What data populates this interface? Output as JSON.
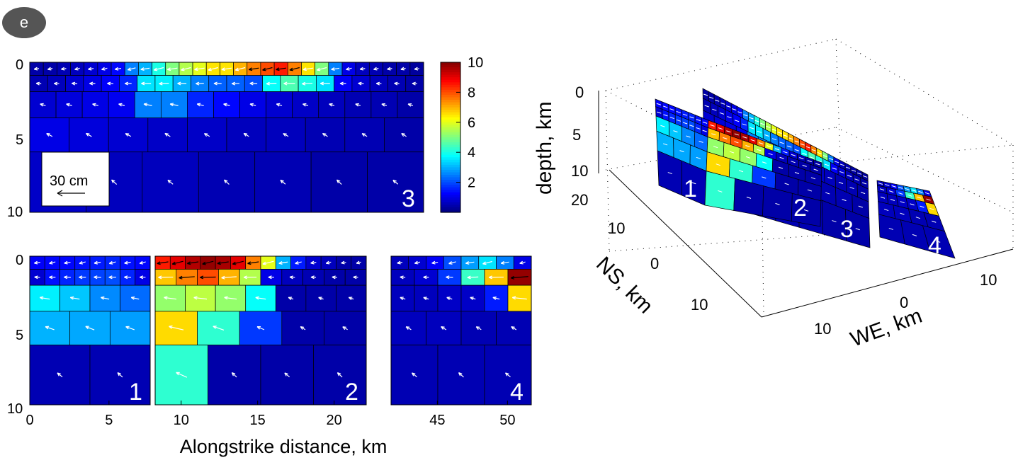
{
  "panel_label": "e",
  "chart_data": {
    "type": "heatmap",
    "colorbar": {
      "min": 0,
      "max": 10,
      "ticks": [
        "2",
        "4",
        "6",
        "8",
        "10"
      ]
    },
    "scale_arrow": {
      "label": "30 cm"
    },
    "xlabel": "Alongstrike distance, km",
    "panels": [
      {
        "id": "3",
        "label": "3",
        "yticks": [
          "0",
          "5",
          "10"
        ],
        "rows": [
          {
            "top": 0,
            "bottom": 0.85,
            "values": [
              0.4,
              0.4,
              0.5,
              0.6,
              0.8,
              1.0,
              1.3,
              2.5,
              3.0,
              4.0,
              5.0,
              5.5,
              6.0,
              6.5,
              6.5,
              7.0,
              7.5,
              8.0,
              8.5,
              7.5,
              6.5,
              5.0,
              2.5,
              1.0,
              0.6,
              0.5,
              0.4,
              0.4,
              0.3
            ]
          },
          {
            "top": 0.85,
            "bottom": 1.9,
            "values": [
              0.5,
              0.6,
              0.8,
              1.0,
              1.2,
              1.6,
              3.5,
              3.6,
              3.0,
              2.5,
              2.2,
              2.2,
              2.0,
              3.8,
              4.5,
              4.0,
              3.5,
              1.2,
              0.8,
              0.6,
              0.5,
              0.4
            ]
          },
          {
            "top": 1.9,
            "bottom": 3.6,
            "values": [
              0.8,
              0.9,
              1.0,
              1.1,
              2.5,
              2.5,
              1.6,
              1.3,
              1.0,
              0.8,
              0.7,
              0.6,
              0.5,
              0.5,
              0.4
            ]
          },
          {
            "top": 3.6,
            "bottom": 5.8,
            "values": [
              1.0,
              0.9,
              0.8,
              0.7,
              0.7,
              0.6,
              0.6,
              0.5,
              0.5,
              0.4
            ]
          },
          {
            "top": 5.8,
            "bottom": 9.7,
            "values": [
              0.7,
              0.6,
              0.6,
              0.5,
              0.5,
              0.4,
              0.4
            ]
          }
        ]
      },
      {
        "id": "1",
        "label": "1",
        "xticks": [
          "0",
          "5"
        ],
        "xlim": [
          0,
          7.6
        ],
        "yticks": [
          "0",
          "5",
          "10"
        ],
        "rows": [
          {
            "top": 0,
            "bottom": 0.85,
            "values": [
              1.2,
              1.3,
              1.3,
              1.4,
              1.5,
              1.6,
              1.4,
              1.3
            ]
          },
          {
            "top": 0.85,
            "bottom": 1.9,
            "values": [
              0.8,
              1.4,
              1.6,
              1.8,
              1.9,
              2.0,
              1.6,
              1.0
            ]
          },
          {
            "top": 1.9,
            "bottom": 3.6,
            "values": [
              3.6,
              3.2,
              2.6,
              2.3
            ]
          },
          {
            "top": 3.6,
            "bottom": 5.8,
            "values": [
              3.0,
              2.9,
              2.8
            ]
          },
          {
            "top": 5.8,
            "bottom": 9.7,
            "values": [
              0.5,
              0.5
            ]
          }
        ]
      },
      {
        "id": "2",
        "label": "2",
        "xticks": [
          "10",
          "15",
          "20"
        ],
        "xlim": [
          8.3,
          22.1
        ],
        "rows": [
          {
            "top": 0,
            "bottom": 0.85,
            "values": [
              8.5,
              9.0,
              9.5,
              9.8,
              9.6,
              9.0,
              7.5,
              6.0,
              3.0,
              1.5,
              0.8,
              0.6,
              0.4,
              0.4
            ]
          },
          {
            "top": 0.85,
            "bottom": 1.9,
            "values": [
              6.8,
              7.5,
              8.0,
              7.0,
              5.5,
              1.0,
              0.6,
              0.5,
              0.4,
              0.4
            ]
          },
          {
            "top": 1.9,
            "bottom": 3.6,
            "values": [
              5.2,
              5.6,
              5.2,
              3.8,
              0.4,
              0.4,
              0.4
            ]
          },
          {
            "top": 3.6,
            "bottom": 5.8,
            "values": [
              6.6,
              4.2,
              1.8,
              0.4,
              0.4
            ]
          },
          {
            "top": 5.8,
            "bottom": 9.7,
            "values": [
              4.2,
              0.4,
              0.4,
              0.4
            ]
          }
        ]
      },
      {
        "id": "4",
        "label": "4",
        "xticks": [
          "45",
          "50"
        ],
        "xlim": [
          41.7,
          51.7
        ],
        "rows": [
          {
            "top": 0,
            "bottom": 0.85,
            "values": [
              0.6,
              0.8,
              1.2,
              2.0,
              2.8,
              3.5,
              2.5,
              1.0
            ]
          },
          {
            "top": 0.85,
            "bottom": 1.9,
            "values": [
              0.6,
              0.8,
              1.8,
              4.3,
              6.8,
              9.8
            ]
          },
          {
            "top": 1.9,
            "bottom": 3.6,
            "values": [
              0.6,
              0.6,
              0.7,
              0.7,
              1.5,
              6.6
            ]
          },
          {
            "top": 3.6,
            "bottom": 5.8,
            "values": [
              0.6,
              0.6,
              0.5,
              0.5
            ]
          },
          {
            "top": 5.8,
            "bottom": 9.7,
            "values": [
              0.5,
              0.5,
              0.5
            ]
          }
        ]
      }
    ],
    "view3d": {
      "zlabel": "depth, km",
      "ylabel": "NS, km",
      "xlabel": "WE, km",
      "zticks": [
        "0",
        "5",
        "10",
        "20"
      ],
      "yticks": [
        "10",
        "0",
        "10"
      ],
      "xticks": [
        "10",
        "0",
        "10"
      ],
      "segment_labels": [
        "1",
        "2",
        "3",
        "4"
      ]
    }
  }
}
